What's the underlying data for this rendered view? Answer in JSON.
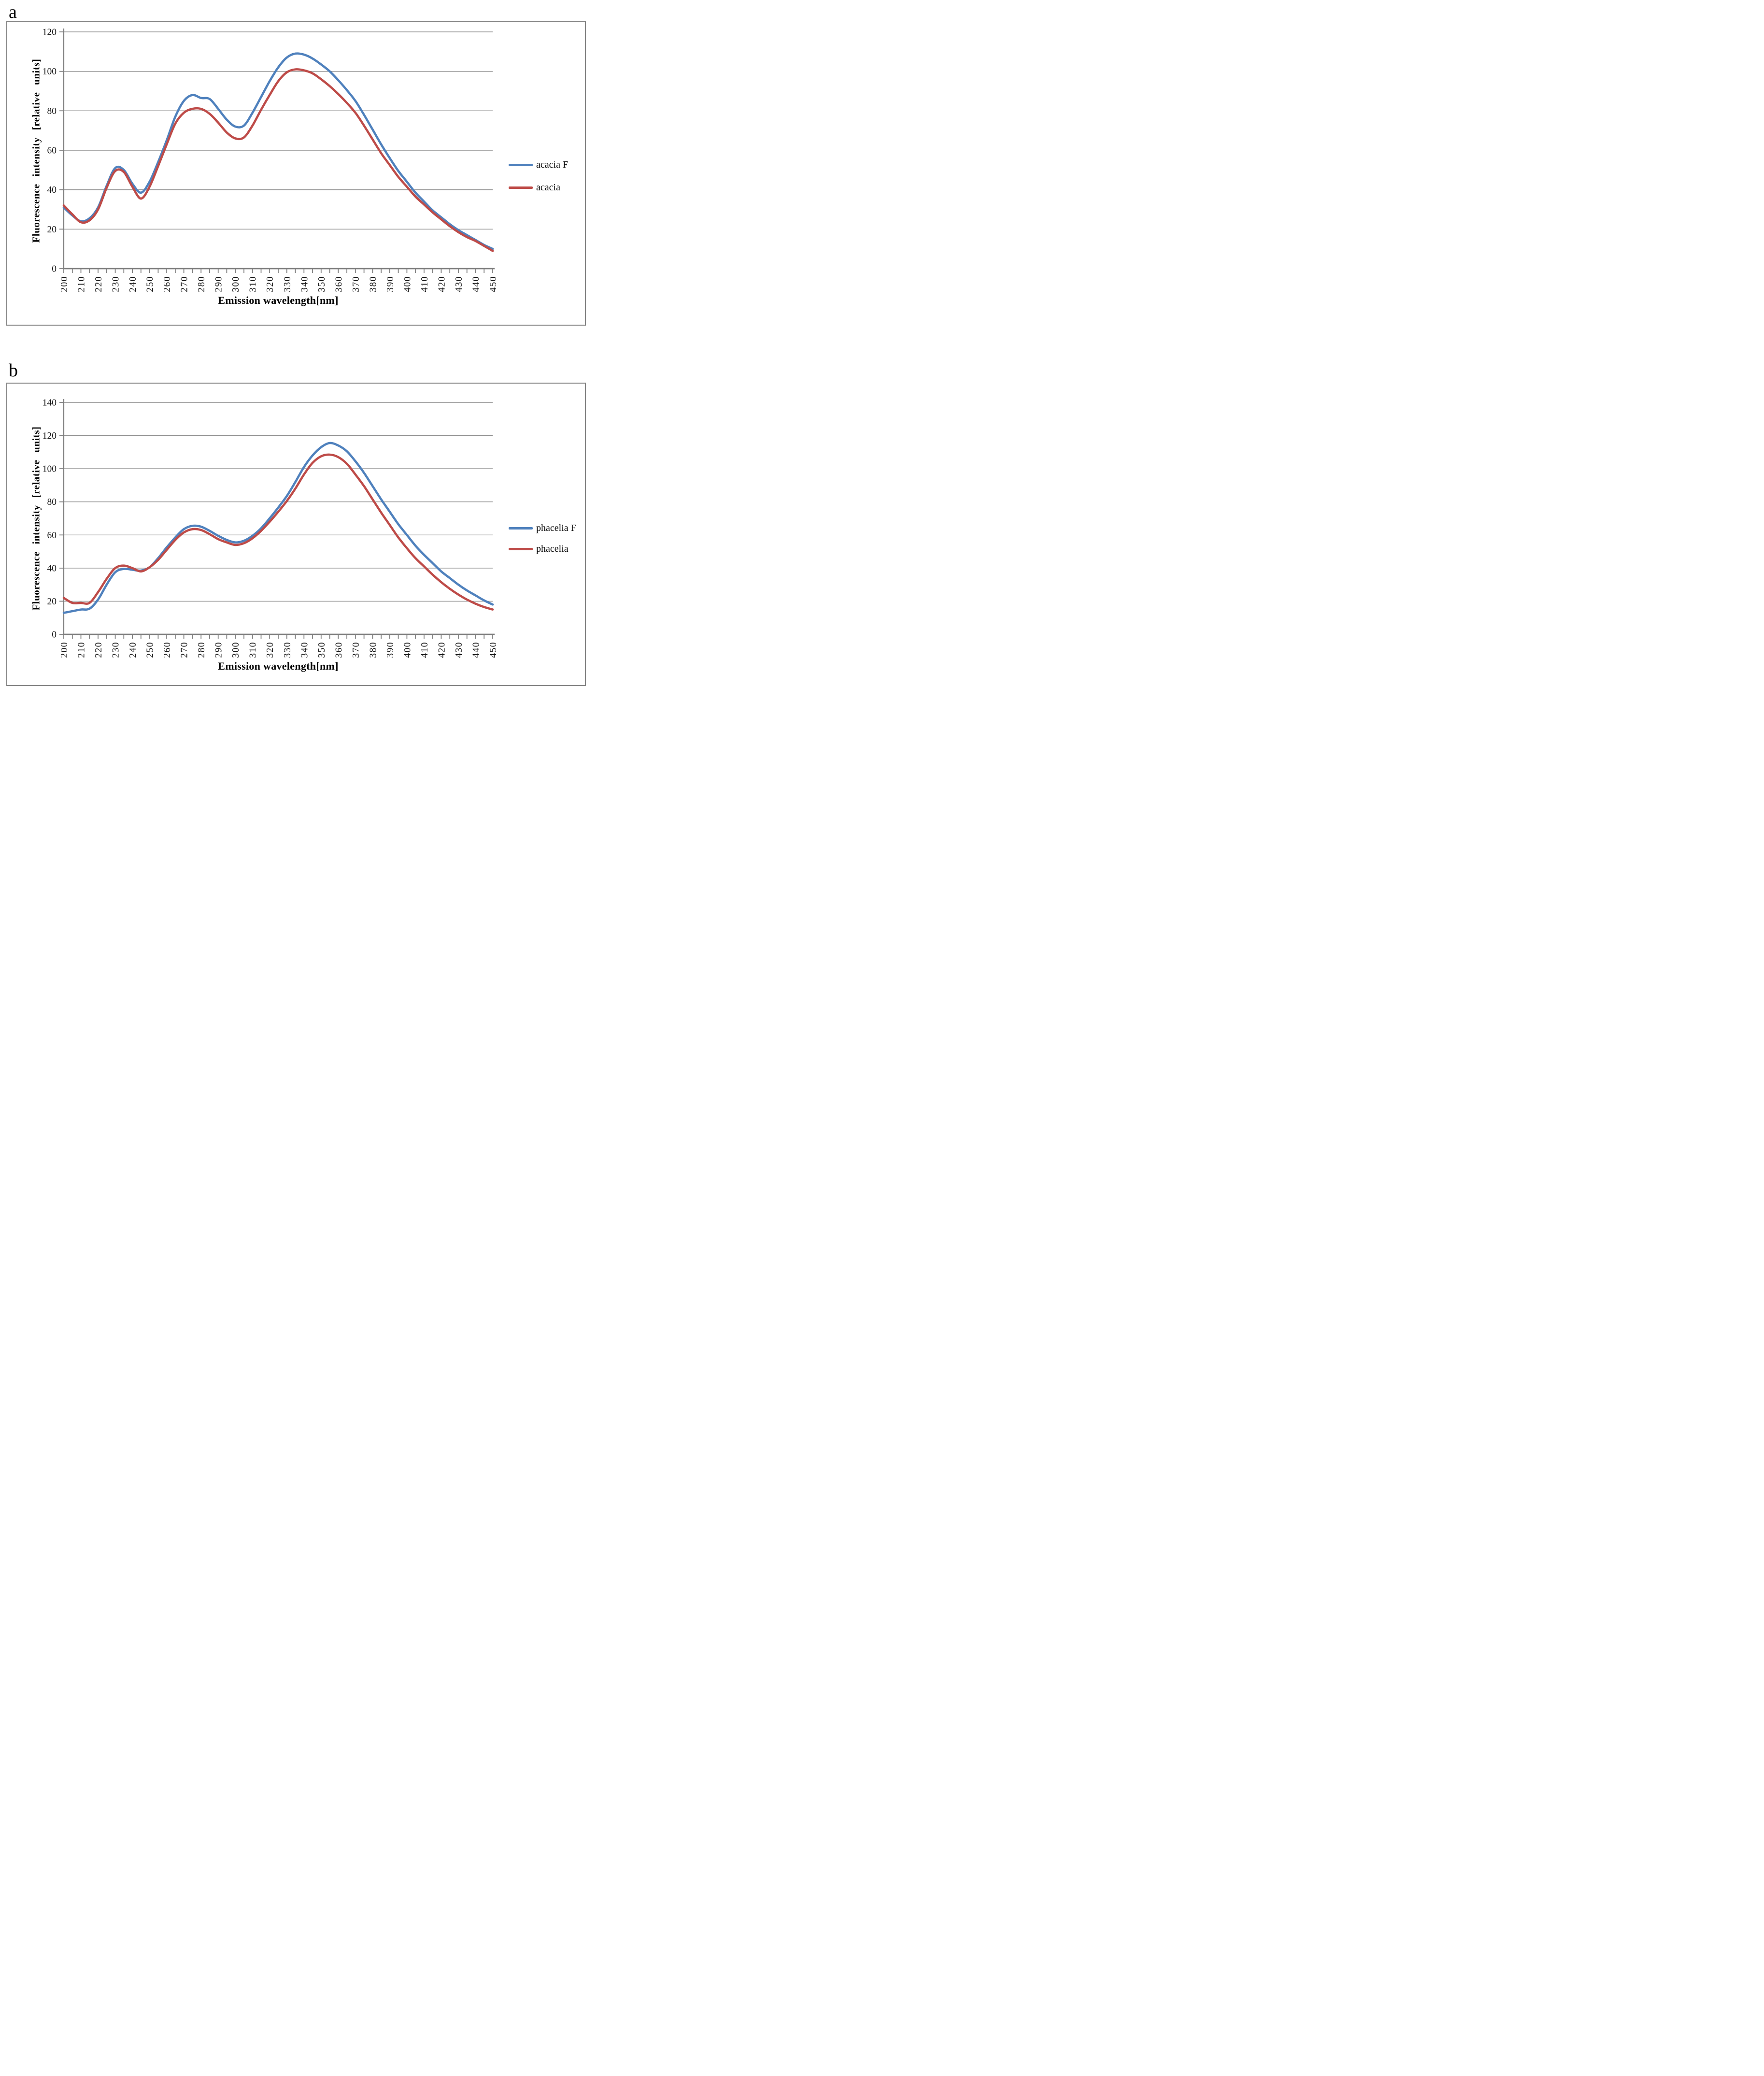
{
  "page": {
    "panel_a_label": "a",
    "panel_b_label": "b"
  },
  "colors": {
    "series_blue": "#4f81bd",
    "series_red": "#be4b48",
    "gridline": "#8f8f8f",
    "axis": "#7f7f7f",
    "frame_border": "#848484",
    "text": "#161616"
  },
  "chart_data": [
    {
      "type": "line",
      "panel": "a",
      "title": "",
      "xlabel": "Emission wavelength[nm]",
      "ylabel": "Fluorescence intensity [relative units]",
      "xlim": [
        200,
        450
      ],
      "ylim": [
        0,
        120
      ],
      "grid": true,
      "legend_position": "right",
      "yticks": [
        0,
        20,
        40,
        60,
        80,
        100,
        120
      ],
      "xticks_labeled": [
        200,
        210,
        220,
        230,
        240,
        250,
        260,
        270,
        280,
        290,
        300,
        310,
        320,
        330,
        340,
        350,
        360,
        370,
        380,
        390,
        400,
        410,
        420,
        430,
        440,
        450
      ],
      "xtick_minor_step": 5,
      "x": [
        200,
        205,
        210,
        215,
        220,
        225,
        230,
        235,
        240,
        245,
        250,
        255,
        260,
        265,
        270,
        275,
        280,
        285,
        290,
        295,
        300,
        305,
        310,
        315,
        320,
        325,
        330,
        335,
        340,
        345,
        350,
        355,
        360,
        365,
        370,
        375,
        380,
        385,
        390,
        395,
        400,
        405,
        410,
        415,
        420,
        425,
        430,
        435,
        440,
        445,
        450
      ],
      "series": [
        {
          "name": "acacia F",
          "color": "#4f81bd",
          "values": [
            31,
            27,
            24,
            25.5,
            31,
            42,
            51,
            50,
            43,
            38.5,
            44,
            54,
            65,
            77,
            85,
            88,
            86.5,
            86,
            81,
            75.5,
            72,
            72.5,
            79,
            87,
            95,
            102,
            107,
            109,
            108.5,
            106.5,
            103.5,
            100,
            95.5,
            90.5,
            85,
            78,
            70.5,
            63,
            56,
            49.5,
            44,
            38.5,
            34,
            29.5,
            26,
            22.5,
            19.5,
            17,
            14.5,
            12,
            10
          ]
        },
        {
          "name": "acacia",
          "color": "#be4b48",
          "values": [
            32,
            27.5,
            23.5,
            24.5,
            30,
            41,
            49.5,
            49,
            41.5,
            35.5,
            41.5,
            52,
            63,
            73.5,
            79,
            81,
            81,
            78.5,
            74,
            69,
            66,
            66.5,
            72.5,
            80.5,
            88,
            95,
            99.5,
            101,
            100.5,
            99,
            96,
            92.5,
            88.5,
            84,
            79,
            72.5,
            65.5,
            58.5,
            52.5,
            46.5,
            41.5,
            36.5,
            32.5,
            28.5,
            25,
            21.5,
            18.5,
            16,
            14,
            11.5,
            9
          ]
        }
      ]
    },
    {
      "type": "line",
      "panel": "b",
      "title": "",
      "xlabel": "Emission wavelength[nm]",
      "ylabel": "Fluorescence intensity [relative units]",
      "xlim": [
        200,
        450
      ],
      "ylim": [
        0,
        140
      ],
      "grid": true,
      "legend_position": "right",
      "yticks": [
        0,
        20,
        40,
        60,
        80,
        100,
        120,
        140
      ],
      "xticks_labeled": [
        200,
        210,
        220,
        230,
        240,
        250,
        260,
        270,
        280,
        290,
        300,
        310,
        320,
        330,
        340,
        350,
        360,
        370,
        380,
        390,
        400,
        410,
        420,
        430,
        440,
        450
      ],
      "xtick_minor_step": 5,
      "x": [
        200,
        205,
        210,
        215,
        220,
        225,
        230,
        235,
        240,
        245,
        250,
        255,
        260,
        265,
        270,
        275,
        280,
        285,
        290,
        295,
        300,
        305,
        310,
        315,
        320,
        325,
        330,
        335,
        340,
        345,
        350,
        355,
        360,
        365,
        370,
        375,
        380,
        385,
        390,
        395,
        400,
        405,
        410,
        415,
        420,
        425,
        430,
        435,
        440,
        445,
        450
      ],
      "series": [
        {
          "name": "phacelia F",
          "color": "#4f81bd",
          "values": [
            13,
            14,
            15,
            15.5,
            21,
            30,
            37.5,
            39.5,
            39,
            38.5,
            40.5,
            46,
            52.5,
            58.5,
            63.5,
            65.5,
            65,
            62.5,
            59.5,
            57,
            55.5,
            56.5,
            59.5,
            64,
            70,
            76.5,
            83.5,
            92,
            101,
            108,
            113,
            115.5,
            114,
            110.5,
            104.5,
            97.5,
            89.5,
            81.5,
            74,
            66.5,
            60,
            53.5,
            48,
            43,
            38,
            34,
            30,
            26.5,
            23.5,
            20.5,
            18
          ]
        },
        {
          "name": "phacelia",
          "color": "#be4b48",
          "values": [
            22,
            19,
            19,
            19,
            25.5,
            33.5,
            40,
            41.5,
            40,
            38,
            40.5,
            45,
            51,
            57,
            61.5,
            63.5,
            63,
            60.5,
            57.5,
            55.5,
            54,
            55,
            58,
            62.5,
            68,
            74,
            80.5,
            88,
            96.5,
            103.5,
            107.5,
            108.5,
            107,
            103,
            96.5,
            89.5,
            81.5,
            73.5,
            66,
            58.5,
            52,
            46,
            41,
            36,
            31.5,
            27.5,
            24,
            21,
            18.5,
            16.5,
            15
          ]
        }
      ]
    }
  ]
}
